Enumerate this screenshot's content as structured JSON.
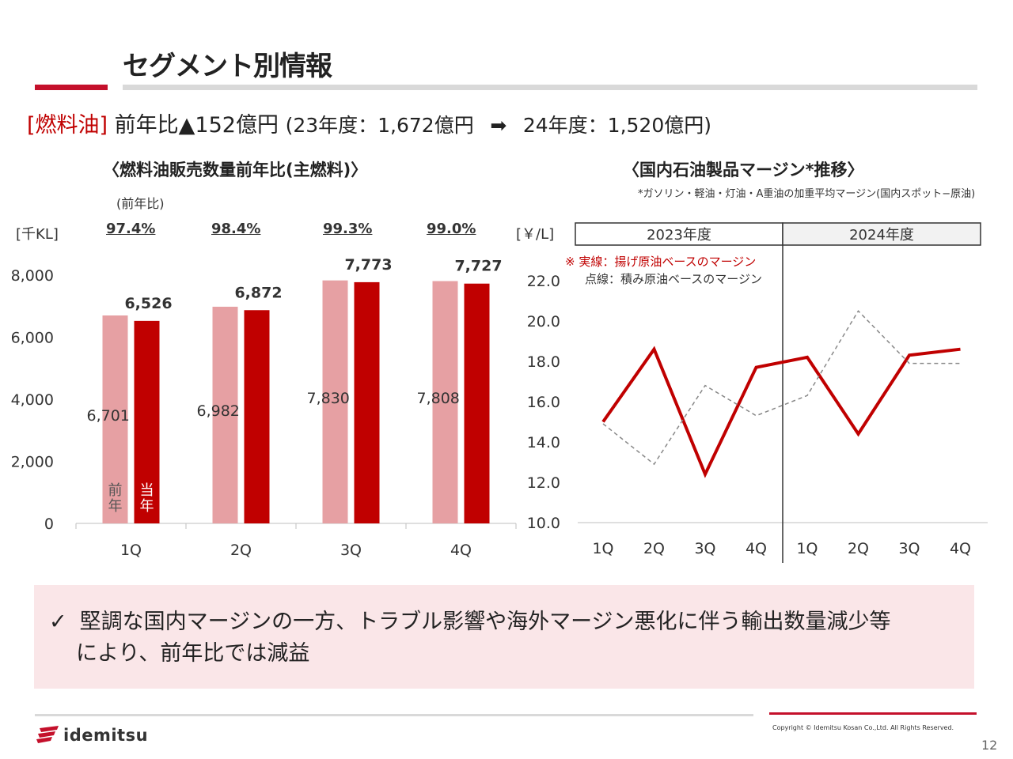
{
  "header": {
    "title": "セグメント別情報"
  },
  "summary": {
    "category": "[燃料油]",
    "headline": "前年比▲152億円",
    "detail_open": "(23年度：1,672億円",
    "arrow": "➡",
    "detail_close": "24年度：1,520億円)"
  },
  "left_panel": {
    "title": "〈燃料油販売数量前年比(主燃料)〉",
    "pct_label": "(前年比)",
    "unit": "[千KL]",
    "pcts": [
      "97.4%",
      "98.4%",
      "99.3%",
      "99.0%"
    ],
    "legend_prev": "前\n年",
    "legend_curr": "当\n年"
  },
  "right_panel": {
    "title": "〈国内石油製品マージン*推移〉",
    "footnote": "*ガソリン・軽油・灯油・A重油の加重平均マージン(国内スポット−原油)",
    "unit": "[￥/L]",
    "fy_2023": "2023年度",
    "fy_2024": "2024年度",
    "legend_solid": "※ 実線：揚げ原油ベースのマージン",
    "legend_dotted": "点線：積み原油ベースのマージン"
  },
  "chart_data": [
    {
      "type": "bar",
      "title": "〈燃料油販売数量前年比(主燃料)〉",
      "ylabel": "[千KL]",
      "categories": [
        "1Q",
        "2Q",
        "3Q",
        "4Q"
      ],
      "ylim": [
        0,
        8000
      ],
      "yticks": [
        "0",
        "2,000",
        "4,000",
        "6,000",
        "8,000"
      ],
      "series": [
        {
          "name": "前年",
          "values": [
            6701,
            6982,
            7830,
            7808
          ],
          "labels": [
            "6,701",
            "6,982",
            "7,830",
            "7,808"
          ],
          "color": "#e6a0a3"
        },
        {
          "name": "当年",
          "values": [
            6526,
            6872,
            7773,
            7727
          ],
          "labels": [
            "6,526",
            "6,872",
            "7,773",
            "7,727"
          ],
          "color": "#c00000"
        }
      ],
      "yoy": [
        "97.4%",
        "98.4%",
        "99.3%",
        "99.0%"
      ]
    },
    {
      "type": "line",
      "title": "〈国内石油製品マージン*推移〉",
      "ylabel": "[￥/L]",
      "categories": [
        "1Q",
        "2Q",
        "3Q",
        "4Q",
        "1Q",
        "2Q",
        "3Q",
        "4Q"
      ],
      "periods": [
        "2023年度",
        "2024年度"
      ],
      "ylim": [
        10,
        22
      ],
      "yticks": [
        "10.0",
        "12.0",
        "14.0",
        "16.0",
        "18.0",
        "20.0",
        "22.0"
      ],
      "series": [
        {
          "name": "揚げ原油ベースのマージン",
          "style": "solid",
          "color": "#c00000",
          "values": [
            15.0,
            18.6,
            12.4,
            17.7,
            18.2,
            14.4,
            18.3,
            18.6
          ]
        },
        {
          "name": "積み原油ベースのマージン",
          "style": "dotted",
          "color": "#888888",
          "values": [
            14.9,
            12.9,
            16.8,
            15.3,
            16.3,
            20.5,
            17.9,
            17.9
          ]
        }
      ]
    }
  ],
  "callout": {
    "check": "✓",
    "line1": "堅調な国内マージンの一方、トラブル影響や海外マージン悪化に伴う輸出数量減少等",
    "line2": "により、前年比では減益"
  },
  "footer": {
    "copyright": "Copyright © Idemitsu Kosan Co.,Ltd.  All Rights Reserved.",
    "page": "12",
    "logo": "idemitsu"
  },
  "colors": {
    "brand_red": "#c4102b",
    "bar_current": "#c00000",
    "bar_prev": "#e6a0a3",
    "callout_bg": "#fae6e8"
  }
}
